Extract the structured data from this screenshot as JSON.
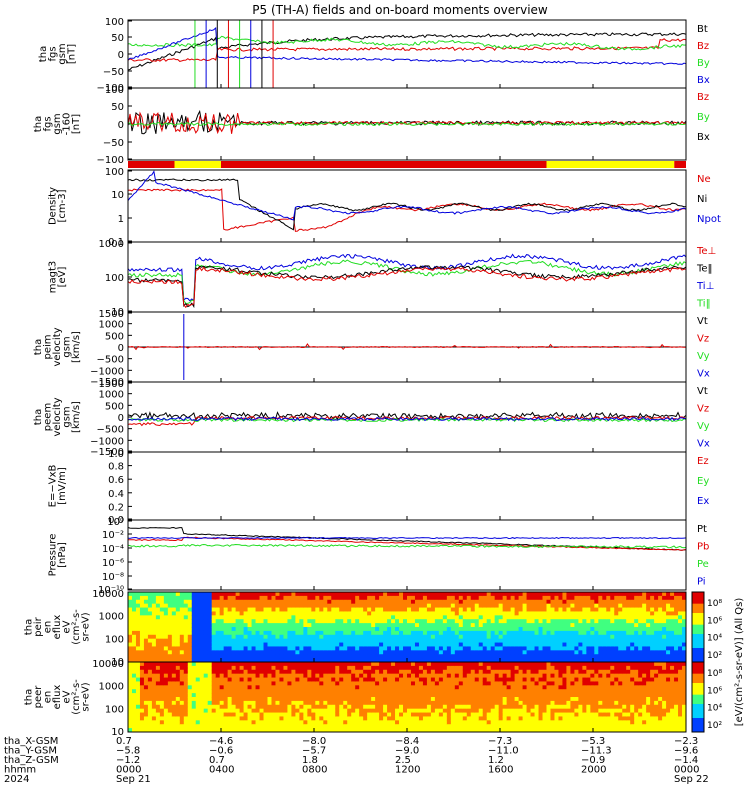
{
  "title": "P5 (TH-A) fields and on-board moments overview",
  "colors": {
    "black": "#000000",
    "red": "#e00000",
    "green": "#22dd22",
    "blue": "#0000dd",
    "yellow": "#ffff00"
  },
  "panels": [
    {
      "id": "fgs",
      "ylabel": [
        "tha",
        "fgs",
        "gsm",
        "[nT]"
      ],
      "ticks": [
        "100",
        "50",
        "0",
        "−50",
        "−100"
      ],
      "legend": [
        {
          "t": "Bt",
          "c": "black"
        },
        {
          "t": "Bz",
          "c": "red"
        },
        {
          "t": "By",
          "c": "green"
        },
        {
          "t": "Bx",
          "c": "blue"
        }
      ]
    },
    {
      "id": "fgs-dsl",
      "ylabel": [
        "tha",
        "fgs",
        "gsm",
        "-160",
        "[nT]"
      ],
      "ticks": [
        "100",
        "50",
        "0",
        "−50",
        "−100"
      ],
      "legend": [
        {
          "t": "Bz",
          "c": "red"
        },
        {
          "t": "By",
          "c": "green"
        },
        {
          "t": "Bx",
          "c": "black"
        }
      ]
    },
    {
      "id": "density",
      "ylabel": [
        "Density",
        "[cm-3]"
      ],
      "ticks": [
        "100",
        "10",
        "1",
        "0.1"
      ],
      "legend": [
        {
          "t": "Ne",
          "c": "red"
        },
        {
          "t": "Ni",
          "c": "black"
        },
        {
          "t": "Npot",
          "c": "blue"
        }
      ]
    },
    {
      "id": "temperature",
      "ylabel": [
        "magt3",
        "[eV]"
      ],
      "ticks": [
        "1000",
        "100",
        "10"
      ],
      "legend": [
        {
          "t": "Te⊥",
          "c": "red"
        },
        {
          "t": "Te‖",
          "c": "black"
        },
        {
          "t": "Ti⊥",
          "c": "blue"
        },
        {
          "t": "Ti‖",
          "c": "green"
        }
      ]
    },
    {
      "id": "peim-velocity",
      "ylabel": [
        "tha",
        "peim",
        "velocity",
        "gsm",
        "[km/s]"
      ],
      "ticks": [
        "1500",
        "1000",
        "500",
        "0",
        "−500",
        "−1000",
        "−1500"
      ],
      "legend": [
        {
          "t": "Vt",
          "c": "black"
        },
        {
          "t": "Vz",
          "c": "red"
        },
        {
          "t": "Vy",
          "c": "green"
        },
        {
          "t": "Vx",
          "c": "blue"
        }
      ]
    },
    {
      "id": "peem-velocity",
      "ylabel": [
        "tha",
        "peem",
        "velocity",
        "gsm",
        "[km/s]"
      ],
      "ticks": [
        "1500",
        "1000",
        "500",
        "0",
        "−500",
        "−1000",
        "−1500"
      ],
      "legend": [
        {
          "t": "Vt",
          "c": "black"
        },
        {
          "t": "Vz",
          "c": "red"
        },
        {
          "t": "Vy",
          "c": "green"
        },
        {
          "t": "Vx",
          "c": "blue"
        }
      ]
    },
    {
      "id": "efield",
      "ylabel": [
        "E=−VxB",
        "[mV/m]"
      ],
      "ticks": [
        "1.0",
        "0.8",
        "0.6",
        "0.4",
        "0.2",
        "0.0"
      ],
      "legend": [
        {
          "t": "Ez",
          "c": "red"
        },
        {
          "t": "Ey",
          "c": "green"
        },
        {
          "t": "Ex",
          "c": "blue"
        }
      ]
    },
    {
      "id": "pressure",
      "ylabel": [
        "Pressure",
        "[nPa]"
      ],
      "ticks": [
        "10⁰",
        "10⁻²",
        "10⁻⁴",
        "10⁻⁶",
        "10⁻⁸",
        "10⁻¹⁰"
      ],
      "legend": [
        {
          "t": "Pt",
          "c": "black"
        },
        {
          "t": "Pb",
          "c": "red"
        },
        {
          "t": "Pe",
          "c": "green"
        },
        {
          "t": "Pi",
          "c": "blue"
        }
      ]
    },
    {
      "id": "ion-spec",
      "ylabel": [
        "tha",
        "peir",
        "en",
        "eflux",
        "eV",
        "(cm²-s-",
        "sr-eV)"
      ],
      "ticks": [
        "10000",
        "1000",
        "100",
        "10"
      ],
      "legend": []
    },
    {
      "id": "elec-spec",
      "ylabel": [
        "tha",
        "peer",
        "en",
        "eflux",
        "eV",
        "(cm²-s-",
        "sr-eV)"
      ],
      "ticks": [
        "10000",
        "1000",
        "100",
        "10"
      ],
      "legend": []
    }
  ],
  "colorbar": {
    "ticks_ion": [
      "10⁸",
      "10⁶",
      "10⁴",
      "10²"
    ],
    "ticks_elec": [
      "10⁸",
      "10⁶",
      "10⁴",
      "10²"
    ],
    "label": "[eV/(cm²-s-sr-eV)] (All Qs)"
  },
  "xaxis": {
    "row_labels": [
      "tha_X-GSM",
      "tha_Y-GSM",
      "tha_Z-GSM",
      "hhmm",
      "2024"
    ],
    "columns": [
      {
        "x": "0.7",
        "y": "−5.8",
        "z": "−1.2",
        "t": "0000",
        "d": "Sep 21"
      },
      {
        "x": "−4.6",
        "y": "−0.6",
        "z": "0.7",
        "t": "0400",
        "d": ""
      },
      {
        "x": "−8.0",
        "y": "−5.7",
        "z": "1.8",
        "t": "0800",
        "d": ""
      },
      {
        "x": "−8.4",
        "y": "−9.0",
        "z": "2.5",
        "t": "1200",
        "d": ""
      },
      {
        "x": "−7.3",
        "y": "−11.0",
        "z": "1.2",
        "t": "1600",
        "d": ""
      },
      {
        "x": "−5.3",
        "y": "−11.3",
        "z": "−0.9",
        "t": "2000",
        "d": ""
      },
      {
        "x": "−2.3",
        "y": "−9.6",
        "z": "−1.4",
        "t": "0000",
        "d": "Sep 22"
      }
    ]
  },
  "chart_data": {
    "type": "line",
    "title": "P5 (TH-A) fields and on-board moments overview",
    "x_ticks": [
      "0000",
      "0400",
      "0800",
      "1200",
      "1600",
      "2000",
      "0000"
    ],
    "series_notes": "multi-panel time series overview; values approximated from plot",
    "bt_approx": [
      {
        "t": "0800",
        "v": 40
      },
      {
        "t": "1200",
        "v": 25
      },
      {
        "t": "1600",
        "v": 20
      },
      {
        "t": "2000",
        "v": 20
      },
      {
        "t": "0000",
        "v": 45
      }
    ],
    "density_approx": [
      {
        "t": "0800",
        "v": 0.1
      },
      {
        "t": "1200",
        "v": 0.6
      },
      {
        "t": "1600",
        "v": 0.4
      },
      {
        "t": "2000",
        "v": 0.5
      }
    ],
    "mode_bar": [
      {
        "from": "0000",
        "to": "0200",
        "c": "red"
      },
      {
        "from": "0200",
        "to": "0400",
        "c": "yellow"
      },
      {
        "from": "0400",
        "to": "1800",
        "c": "red"
      },
      {
        "from": "1800",
        "to": "2330",
        "c": "yellow"
      },
      {
        "from": "2330",
        "to": "0000",
        "c": "red"
      }
    ]
  }
}
